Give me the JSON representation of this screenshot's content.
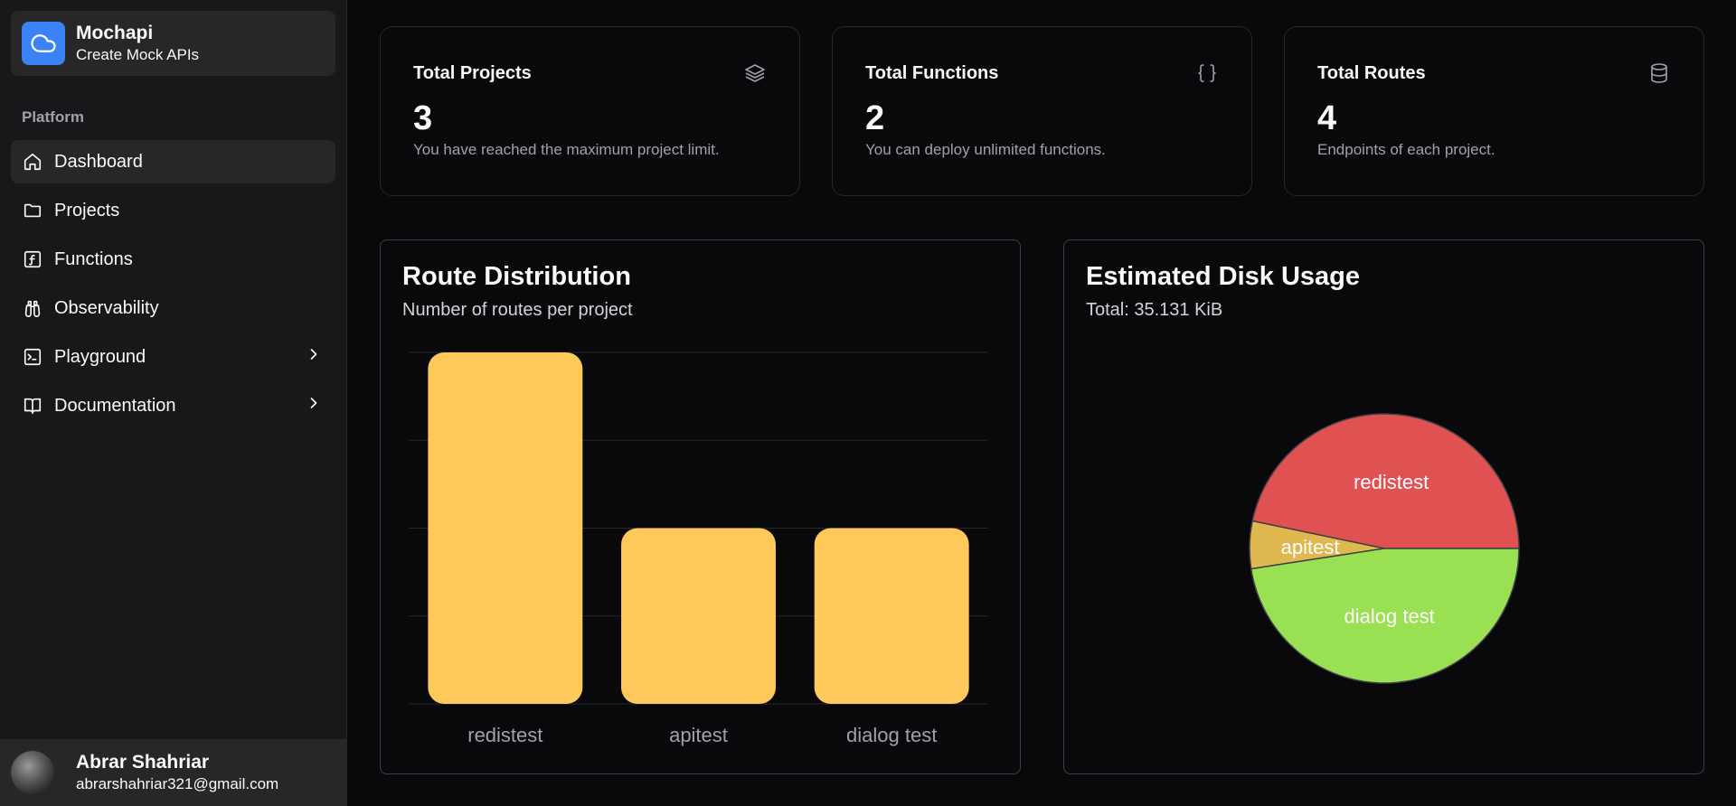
{
  "brand": {
    "name": "Mochapi",
    "subtitle": "Create Mock APIs",
    "icon": "cloud-icon",
    "color": "#3b82f6"
  },
  "sidebar": {
    "group_label": "Platform",
    "items": [
      {
        "label": "Dashboard",
        "icon": "home-icon",
        "active": true
      },
      {
        "label": "Projects",
        "icon": "folder-icon"
      },
      {
        "label": "Functions",
        "icon": "function-icon"
      },
      {
        "label": "Observability",
        "icon": "binoculars-icon"
      },
      {
        "label": "Playground",
        "icon": "terminal-icon",
        "chevron": true
      },
      {
        "label": "Documentation",
        "icon": "book-icon",
        "chevron": true
      }
    ]
  },
  "user": {
    "name": "Abrar Shahriar",
    "email": "abrarshahriar321@gmail.com"
  },
  "stats": [
    {
      "title": "Total Projects",
      "value": "3",
      "description": "You have reached the maximum project limit.",
      "icon": "layers-icon"
    },
    {
      "title": "Total Functions",
      "value": "2",
      "description": "You can deploy unlimited functions.",
      "icon": "braces-icon"
    },
    {
      "title": "Total Routes",
      "value": "4",
      "description": "Endpoints of each project.",
      "icon": "database-icon"
    }
  ],
  "route_card": {
    "title": "Route Distribution",
    "subtitle": "Number of routes per project"
  },
  "disk_card": {
    "title": "Estimated Disk Usage",
    "subtitle": "Total: 35.131 KiB"
  },
  "chart_data": [
    {
      "type": "bar",
      "categories": [
        "redistest",
        "apitest",
        "dialog test"
      ],
      "values": [
        2,
        1,
        1
      ],
      "ylim": [
        0,
        2
      ],
      "grid": true,
      "bar_color": "#ffc85a"
    },
    {
      "type": "pie",
      "labels": [
        "redistest",
        "apitest",
        "dialog test"
      ],
      "values": [
        16.4,
        2.0,
        16.7
      ],
      "colors": [
        "#e05252",
        "#e0b850",
        "#99e052"
      ]
    }
  ]
}
